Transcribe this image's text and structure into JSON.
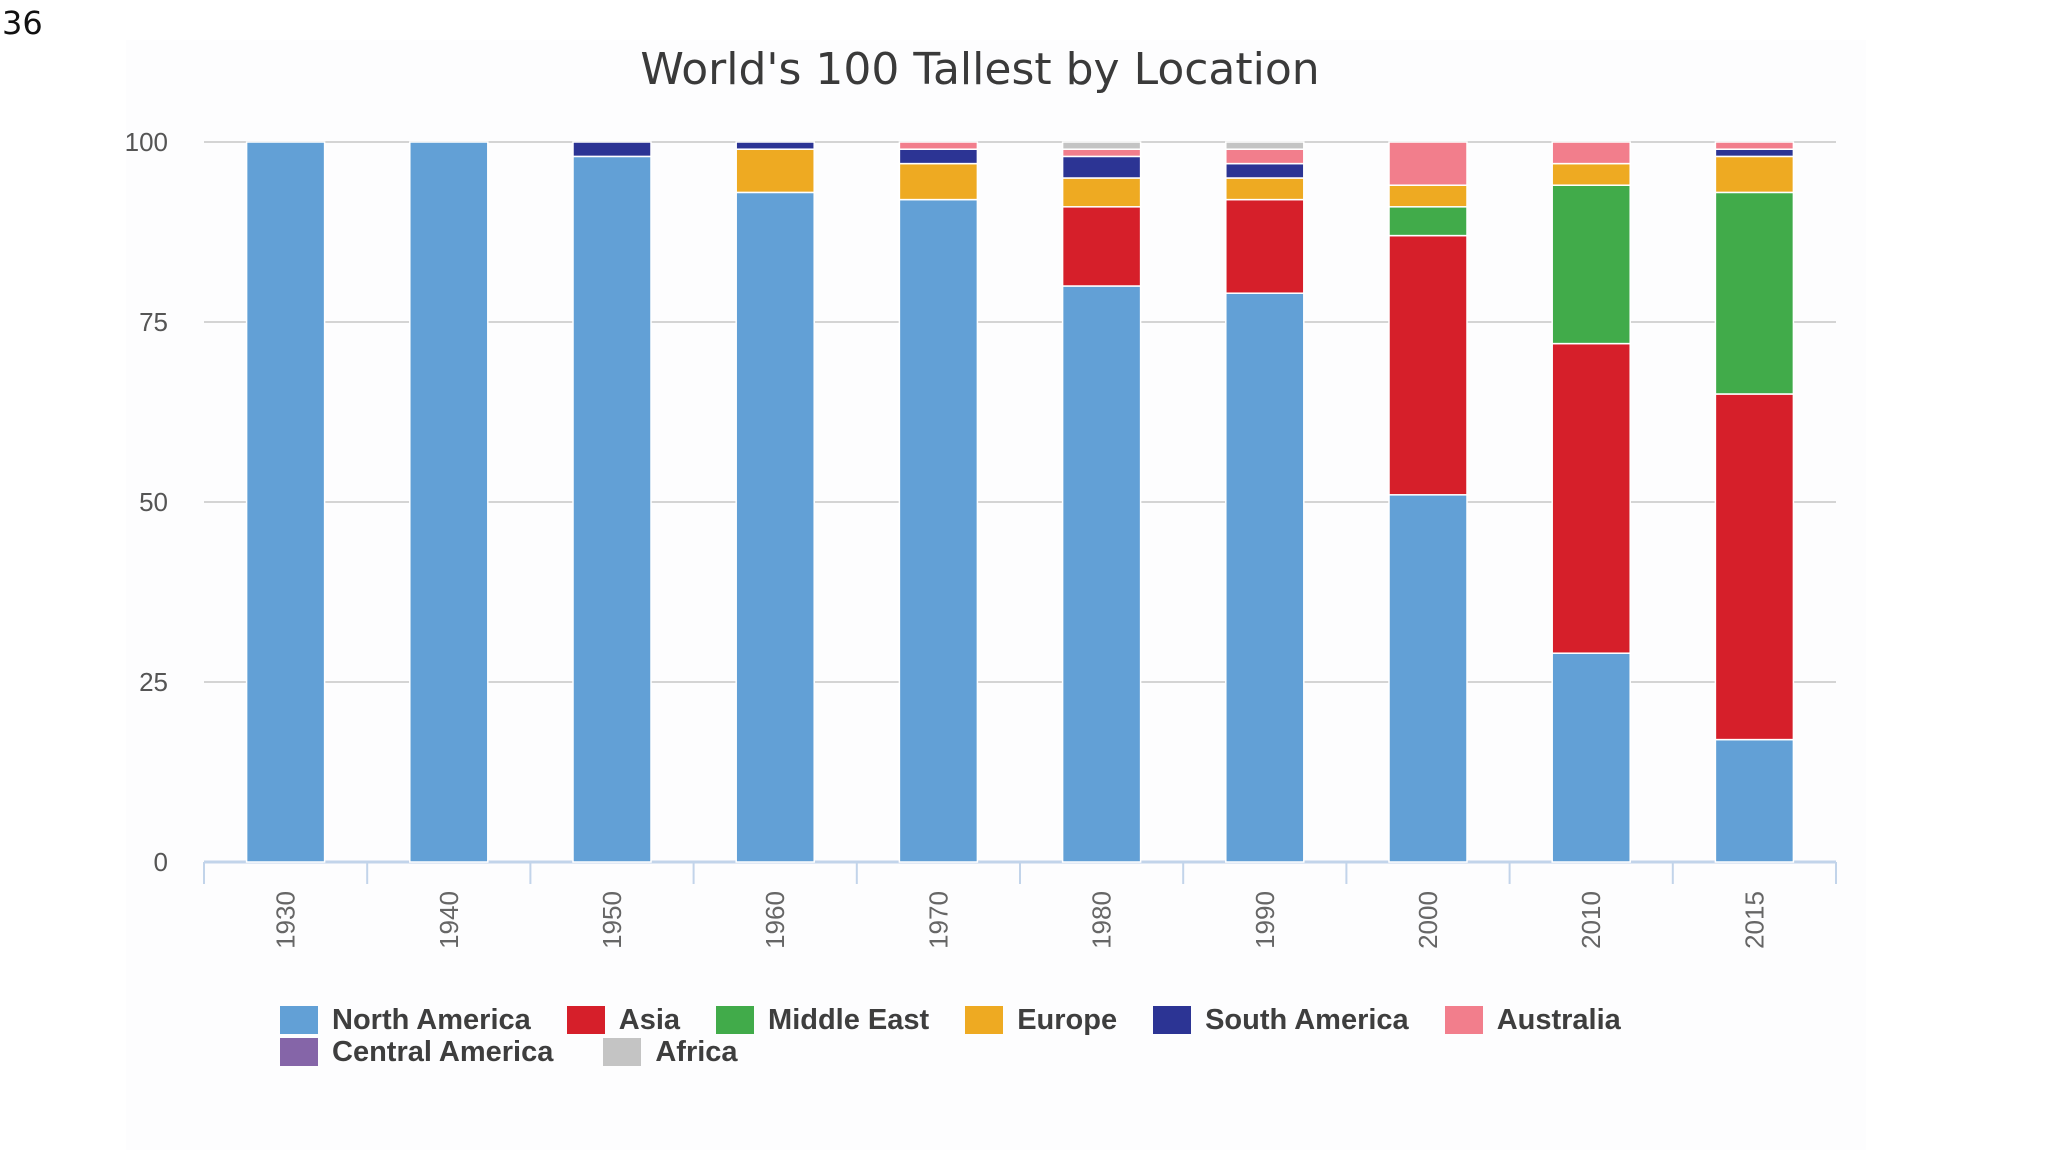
{
  "page_number": "36",
  "chart_data": {
    "type": "bar",
    "stacked": true,
    "title": "World's 100 Tallest by Location",
    "xlabel": "",
    "ylabel": "",
    "ylim": [
      0,
      100
    ],
    "yticks": [
      "0",
      "25",
      "50",
      "75",
      "100"
    ],
    "grid": true,
    "legend_position": "bottom",
    "categories": [
      "1930",
      "1940",
      "1950",
      "1960",
      "1970",
      "1980",
      "1990",
      "2000",
      "2010",
      "2015"
    ],
    "series": [
      {
        "name": "North America",
        "color": "#62a0d6",
        "values": [
          100,
          100,
          98,
          93,
          92,
          80,
          79,
          51,
          29,
          17
        ]
      },
      {
        "name": "Asia",
        "color": "#d61f2a",
        "values": [
          0,
          0,
          0,
          0,
          0,
          11,
          13,
          36,
          43,
          48
        ]
      },
      {
        "name": "Middle East",
        "color": "#41ab4a",
        "values": [
          0,
          0,
          0,
          0,
          0,
          0,
          0,
          4,
          22,
          28
        ]
      },
      {
        "name": "Europe",
        "color": "#eeaa22",
        "values": [
          0,
          0,
          0,
          6,
          5,
          4,
          3,
          3,
          3,
          5
        ]
      },
      {
        "name": "South America",
        "color": "#2c3494",
        "values": [
          0,
          0,
          2,
          1,
          2,
          3,
          2,
          0,
          0,
          1
        ]
      },
      {
        "name": "Australia",
        "color": "#f27e8c",
        "values": [
          0,
          0,
          0,
          0,
          1,
          1,
          2,
          6,
          3,
          1
        ]
      },
      {
        "name": "Central America",
        "color": "#8565a8",
        "values": [
          0,
          0,
          0,
          0,
          0,
          0,
          0,
          0,
          0,
          0
        ]
      },
      {
        "name": "Africa",
        "color": "#c4c4c4",
        "values": [
          0,
          0,
          0,
          0,
          0,
          1,
          1,
          0,
          0,
          0
        ]
      }
    ],
    "legend_rows": [
      [
        "North America",
        "Asia",
        "Middle East",
        "Europe",
        "South America",
        "Australia"
      ],
      [
        "Central America",
        "Africa"
      ]
    ]
  }
}
